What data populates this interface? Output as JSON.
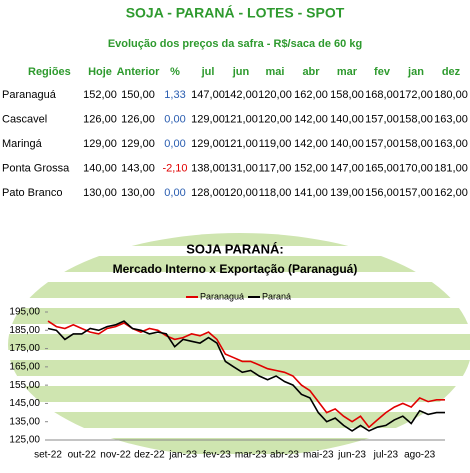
{
  "header": {
    "title": "SOJA - PARANÁ - LOTES - SPOT",
    "subtitle": "Evolução dos preços da safra - R$/saca de 60 kg"
  },
  "table": {
    "columns": [
      "Regiões",
      "Hoje",
      "Anterior",
      "%",
      "jul",
      "jun",
      "mai",
      "abr",
      "mar",
      "fev",
      "jan",
      "dez"
    ],
    "rows": [
      [
        "Paranaguá",
        "152,00",
        "150,00",
        "1,33",
        "147,00",
        "142,00",
        "120,00",
        "162,00",
        "158,00",
        "168,00",
        "172,00",
        "180,00"
      ],
      [
        "Cascavel",
        "126,00",
        "126,00",
        "0,00",
        "129,00",
        "121,00",
        "120,00",
        "142,00",
        "140,00",
        "157,00",
        "158,00",
        "163,00"
      ],
      [
        "Maringá",
        "129,00",
        "129,00",
        "0,00",
        "129,00",
        "121,00",
        "119,00",
        "142,00",
        "140,00",
        "157,00",
        "158,00",
        "163,00"
      ],
      [
        "Ponta Grossa",
        "140,00",
        "143,00",
        "-2,10",
        "138,00",
        "131,00",
        "117,00",
        "152,00",
        "147,00",
        "165,00",
        "170,00",
        "181,00"
      ],
      [
        "Pato Branco",
        "130,00",
        "130,00",
        "0,00",
        "128,00",
        "120,00",
        "118,00",
        "141,00",
        "139,00",
        "156,00",
        "157,00",
        "162,00"
      ]
    ]
  },
  "chart_data": {
    "type": "line",
    "title": "SOJA PARANÁ:",
    "subtitle": "Mercado Interno x Exportação (Paranaguá)",
    "categories": [
      "set-22",
      null,
      null,
      null,
      "out-22",
      null,
      null,
      null,
      "nov-22",
      null,
      null,
      null,
      "dez-22",
      null,
      null,
      null,
      "jan-23",
      null,
      null,
      null,
      "fev-23",
      null,
      null,
      null,
      "mar-23",
      null,
      null,
      null,
      "abr-23",
      null,
      null,
      null,
      "mai-23",
      null,
      null,
      null,
      "jun-23",
      null,
      null,
      null,
      "jul-23",
      null,
      null,
      null,
      "ago-23",
      null,
      null,
      null
    ],
    "series": [
      {
        "name": "Paranaguá",
        "color": "#e00000",
        "values": [
          190,
          187,
          186,
          188,
          186,
          184,
          183,
          186,
          187,
          189,
          186,
          184,
          186,
          185,
          182,
          180,
          181,
          183,
          182,
          184,
          180,
          172,
          170,
          168,
          168,
          166,
          164,
          163,
          162,
          160,
          155,
          152,
          146,
          140,
          142,
          138,
          135,
          138,
          132,
          136,
          140,
          143,
          145,
          143,
          148,
          146,
          147,
          147
        ]
      },
      {
        "name": "Paraná",
        "color": "#000000",
        "values": [
          186,
          185,
          180,
          183,
          183,
          186,
          185,
          187,
          188,
          190,
          186,
          185,
          183,
          184,
          183,
          176,
          180,
          179,
          178,
          181,
          178,
          168,
          165,
          162,
          163,
          160,
          158,
          160,
          157,
          155,
          150,
          148,
          140,
          135,
          137,
          133,
          130,
          133,
          130,
          132,
          133,
          136,
          138,
          134,
          141,
          139,
          140,
          140
        ]
      }
    ],
    "ylim": [
      125,
      195
    ],
    "yticks": [
      {
        "value": 125,
        "label": "125,00"
      },
      {
        "value": 135,
        "label": "135,00"
      },
      {
        "value": 145,
        "label": "145,00"
      },
      {
        "value": 155,
        "label": "155,00"
      },
      {
        "value": 165,
        "label": "165,00"
      },
      {
        "value": 175,
        "label": "175,00"
      },
      {
        "value": 185,
        "label": "185,00"
      },
      {
        "value": 195,
        "label": "195,00"
      }
    ]
  }
}
